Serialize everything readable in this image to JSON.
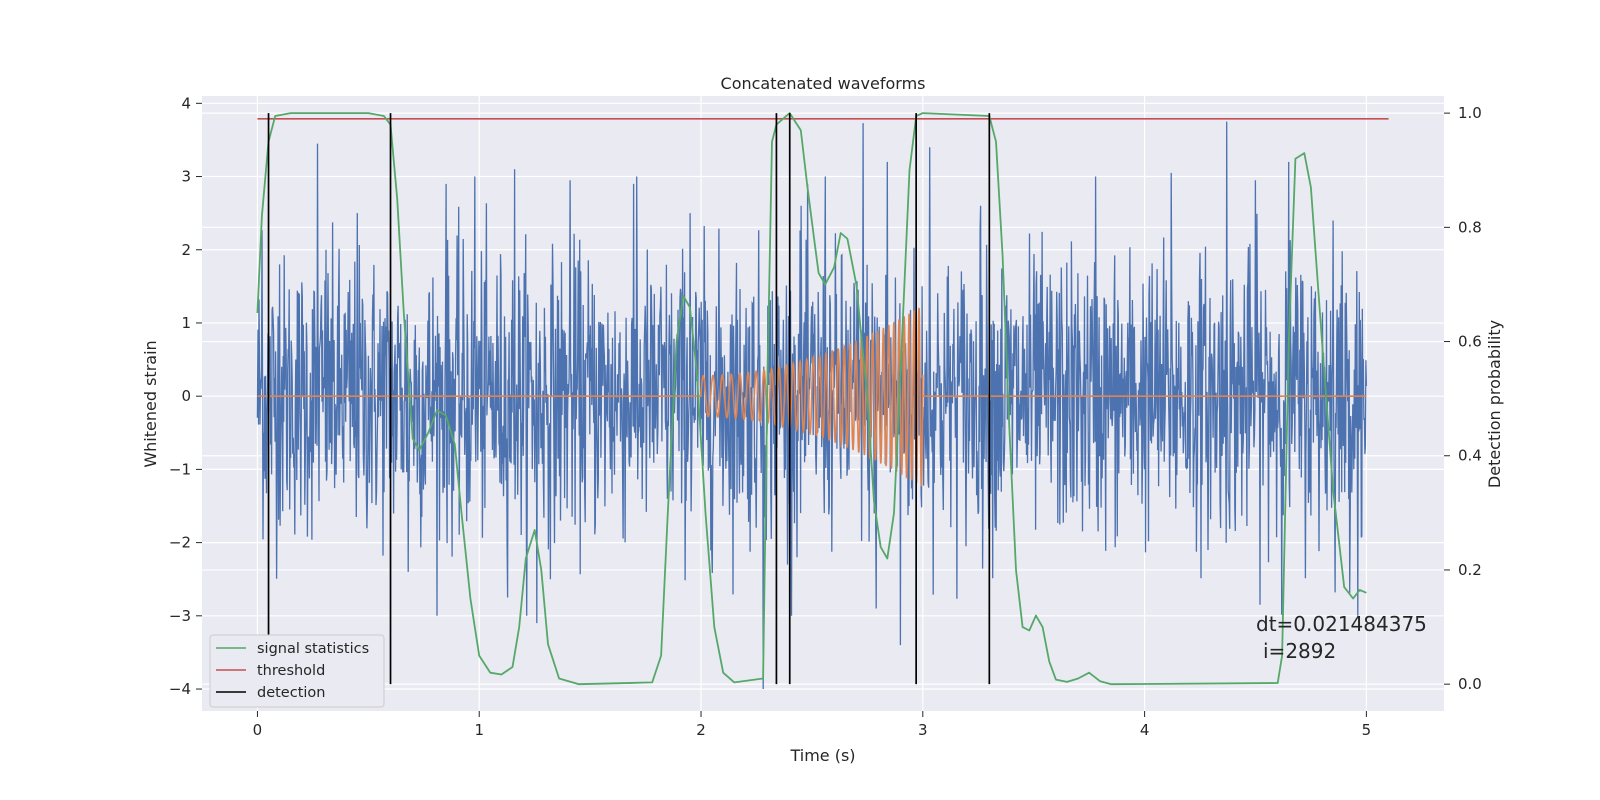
{
  "chart_data": {
    "type": "line",
    "title": "Concatenated waveforms",
    "xlabel": "Time (s)",
    "ylabel": "Whitened strain",
    "y2label": "Detection probability",
    "xlim": [
      -0.25,
      5.35
    ],
    "ylim": [
      -4.3,
      4.1
    ],
    "y2lim": [
      -0.047,
      1.03
    ],
    "x_ticks": [
      0,
      1,
      2,
      3,
      4,
      5
    ],
    "y_ticks": [
      -4,
      -3,
      -2,
      -1,
      0,
      1,
      2,
      3,
      4
    ],
    "y2_ticks": [
      0.0,
      0.2,
      0.4,
      0.6,
      0.8,
      1.0
    ],
    "x_tick_labels": [
      "0",
      "1",
      "2",
      "3",
      "4",
      "5"
    ],
    "y_tick_labels": [
      "−4",
      "−3",
      "−2",
      "−1",
      "0",
      "1",
      "2",
      "3",
      "4"
    ],
    "y2_tick_labels": [
      "0.0",
      "0.2",
      "0.4",
      "0.6",
      "0.8",
      "1.0"
    ],
    "grid": true,
    "legend_position": "lower-left",
    "style": "seaborn darkgrid",
    "colors": {
      "background": "#eaeaf2",
      "grid": "#ffffff",
      "strain": "#4c72b0",
      "template": "#dd8452",
      "signal_statistics": "#55a868",
      "threshold": "#c44e52",
      "detection": "#000000"
    },
    "series": [
      {
        "name": "strain",
        "axis": "left",
        "description_points": {
          "t_start": 0.0,
          "t_end": 5.0,
          "typical_range": [
            -2.5,
            2.5
          ],
          "peak_max": 3.75,
          "peak_min": -4.0
        },
        "spikes": [
          [
            0.02,
            2.27
          ],
          [
            0.1,
            1.8
          ],
          [
            0.27,
            3.45
          ],
          [
            0.31,
            2.0
          ],
          [
            0.45,
            2.5
          ],
          [
            0.68,
            -2.4
          ],
          [
            0.85,
            2.9
          ],
          [
            0.98,
            3.0
          ],
          [
            1.16,
            3.1
          ],
          [
            1.26,
            -3.1
          ],
          [
            1.41,
            2.95
          ],
          [
            1.71,
            3.0
          ],
          [
            1.95,
            2.5
          ],
          [
            2.28,
            -4.0
          ],
          [
            2.45,
            2.6
          ],
          [
            2.56,
            3.0
          ],
          [
            2.73,
            3.73
          ],
          [
            2.79,
            -2.9
          ],
          [
            2.84,
            3.2
          ],
          [
            2.9,
            -3.4
          ],
          [
            3.03,
            3.4
          ],
          [
            3.26,
            2.6
          ],
          [
            3.78,
            3.0
          ],
          [
            4.12,
            3.05
          ],
          [
            4.37,
            3.75
          ],
          [
            4.5,
            2.95
          ],
          [
            4.65,
            3.2
          ],
          [
            4.85,
            2.4
          ]
        ]
      },
      {
        "name": "template",
        "axis": "left",
        "chirp": {
          "t_start": 2.0,
          "t_end": 3.0,
          "amp_start": 0.28,
          "amp_end": 1.25,
          "freq_start": 22,
          "freq_end": 46
        }
      },
      {
        "name": "signal statistics",
        "axis": "right",
        "points": [
          [
            0.0,
            0.65
          ],
          [
            0.02,
            0.82
          ],
          [
            0.05,
            0.95
          ],
          [
            0.08,
            0.995
          ],
          [
            0.15,
            1.0
          ],
          [
            0.5,
            1.0
          ],
          [
            0.57,
            0.995
          ],
          [
            0.6,
            0.98
          ],
          [
            0.63,
            0.85
          ],
          [
            0.66,
            0.65
          ],
          [
            0.7,
            0.43
          ],
          [
            0.73,
            0.41
          ],
          [
            0.77,
            0.44
          ],
          [
            0.81,
            0.48
          ],
          [
            0.85,
            0.47
          ],
          [
            0.89,
            0.42
          ],
          [
            0.92,
            0.3
          ],
          [
            0.96,
            0.15
          ],
          [
            1.0,
            0.05
          ],
          [
            1.05,
            0.02
          ],
          [
            1.1,
            0.017
          ],
          [
            1.15,
            0.03
          ],
          [
            1.18,
            0.1
          ],
          [
            1.21,
            0.22
          ],
          [
            1.25,
            0.27
          ],
          [
            1.28,
            0.2
          ],
          [
            1.31,
            0.07
          ],
          [
            1.36,
            0.01
          ],
          [
            1.45,
            0.0
          ],
          [
            1.78,
            0.003
          ],
          [
            1.82,
            0.05
          ],
          [
            1.85,
            0.3
          ],
          [
            1.89,
            0.6
          ],
          [
            1.92,
            0.68
          ],
          [
            1.95,
            0.66
          ],
          [
            1.98,
            0.55
          ],
          [
            2.02,
            0.3
          ],
          [
            2.06,
            0.1
          ],
          [
            2.1,
            0.02
          ],
          [
            2.15,
            0.003
          ],
          [
            2.28,
            0.01
          ],
          [
            2.3,
            0.55
          ],
          [
            2.32,
            0.95
          ],
          [
            2.34,
            0.98
          ],
          [
            2.4,
            1.0
          ],
          [
            2.45,
            0.97
          ],
          [
            2.48,
            0.87
          ],
          [
            2.51,
            0.78
          ],
          [
            2.53,
            0.72
          ],
          [
            2.56,
            0.7
          ],
          [
            2.6,
            0.73
          ],
          [
            2.63,
            0.79
          ],
          [
            2.66,
            0.78
          ],
          [
            2.7,
            0.7
          ],
          [
            2.75,
            0.5
          ],
          [
            2.78,
            0.32
          ],
          [
            2.81,
            0.24
          ],
          [
            2.84,
            0.22
          ],
          [
            2.87,
            0.3
          ],
          [
            2.9,
            0.55
          ],
          [
            2.94,
            0.9
          ],
          [
            2.97,
            0.995
          ],
          [
            3.0,
            1.0
          ],
          [
            3.3,
            0.995
          ],
          [
            3.33,
            0.95
          ],
          [
            3.36,
            0.75
          ],
          [
            3.39,
            0.45
          ],
          [
            3.42,
            0.2
          ],
          [
            3.45,
            0.1
          ],
          [
            3.48,
            0.094
          ],
          [
            3.51,
            0.12
          ],
          [
            3.54,
            0.1
          ],
          [
            3.57,
            0.04
          ],
          [
            3.6,
            0.008
          ],
          [
            3.65,
            0.004
          ],
          [
            3.7,
            0.01
          ],
          [
            3.75,
            0.02
          ],
          [
            3.8,
            0.005
          ],
          [
            3.85,
            0.0
          ],
          [
            4.6,
            0.002
          ],
          [
            4.62,
            0.05
          ],
          [
            4.65,
            0.6
          ],
          [
            4.68,
            0.92
          ],
          [
            4.72,
            0.93
          ],
          [
            4.75,
            0.87
          ],
          [
            4.8,
            0.6
          ],
          [
            4.85,
            0.34
          ],
          [
            4.9,
            0.17
          ],
          [
            4.94,
            0.15
          ],
          [
            4.97,
            0.165
          ],
          [
            5.0,
            0.16
          ]
        ]
      },
      {
        "name": "threshold",
        "axis": "right",
        "points": [
          [
            0.0,
            0.99
          ],
          [
            5.1,
            0.99
          ]
        ]
      },
      {
        "name": "detection",
        "axis": "right",
        "vlines": [
          0.05,
          0.6,
          2.34,
          2.4,
          2.97,
          3.3
        ],
        "range": [
          0.0,
          1.0
        ]
      }
    ],
    "legend": [
      "signal statistics",
      "threshold",
      "detection"
    ],
    "annotation": {
      "line1": "dt=0.021484375",
      "line2": "i=2892"
    }
  }
}
